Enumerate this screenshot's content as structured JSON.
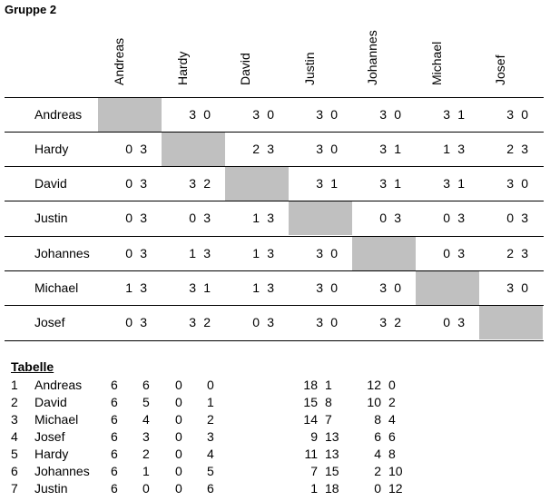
{
  "title": "Gruppe 2",
  "players": [
    "Andreas",
    "Hardy",
    "David",
    "Justin",
    "Johannes",
    "Michael",
    "Josef"
  ],
  "results": [
    [
      null,
      [
        "3",
        "0"
      ],
      [
        "3",
        "0"
      ],
      [
        "3",
        "0"
      ],
      [
        "3",
        "0"
      ],
      [
        "3",
        "1"
      ],
      [
        "3",
        "0"
      ]
    ],
    [
      [
        "0",
        "3"
      ],
      null,
      [
        "2",
        "3"
      ],
      [
        "3",
        "0"
      ],
      [
        "3",
        "1"
      ],
      [
        "1",
        "3"
      ],
      [
        "2",
        "3"
      ]
    ],
    [
      [
        "0",
        "3"
      ],
      [
        "3",
        "2"
      ],
      null,
      [
        "3",
        "1"
      ],
      [
        "3",
        "1"
      ],
      [
        "3",
        "1"
      ],
      [
        "3",
        "0"
      ]
    ],
    [
      [
        "0",
        "3"
      ],
      [
        "0",
        "3"
      ],
      [
        "1",
        "3"
      ],
      null,
      [
        "0",
        "3"
      ],
      [
        "0",
        "3"
      ],
      [
        "0",
        "3"
      ]
    ],
    [
      [
        "0",
        "3"
      ],
      [
        "1",
        "3"
      ],
      [
        "1",
        "3"
      ],
      [
        "3",
        "0"
      ],
      null,
      [
        "0",
        "3"
      ],
      [
        "2",
        "3"
      ]
    ],
    [
      [
        "1",
        "3"
      ],
      [
        "3",
        "1"
      ],
      [
        "1",
        "3"
      ],
      [
        "3",
        "0"
      ],
      [
        "3",
        "0"
      ],
      null,
      [
        "3",
        "0"
      ]
    ],
    [
      [
        "0",
        "3"
      ],
      [
        "3",
        "2"
      ],
      [
        "0",
        "3"
      ],
      [
        "3",
        "0"
      ],
      [
        "3",
        "2"
      ],
      [
        "0",
        "3"
      ],
      null
    ]
  ],
  "standings_title": "Tabelle",
  "standings": [
    {
      "rank": "1",
      "name": "Andreas",
      "played": "6",
      "won": "6",
      "drawn": "0",
      "lost": "0",
      "sets_for": "18",
      "sets_against": "1",
      "pts_for": "12",
      "pts_against": "0"
    },
    {
      "rank": "2",
      "name": "David",
      "played": "6",
      "won": "5",
      "drawn": "0",
      "lost": "1",
      "sets_for": "15",
      "sets_against": "8",
      "pts_for": "10",
      "pts_against": "2"
    },
    {
      "rank": "3",
      "name": "Michael",
      "played": "6",
      "won": "4",
      "drawn": "0",
      "lost": "2",
      "sets_for": "14",
      "sets_against": "7",
      "pts_for": "8",
      "pts_against": "4"
    },
    {
      "rank": "4",
      "name": "Josef",
      "played": "6",
      "won": "3",
      "drawn": "0",
      "lost": "3",
      "sets_for": "9",
      "sets_against": "13",
      "pts_for": "6",
      "pts_against": "6"
    },
    {
      "rank": "5",
      "name": "Hardy",
      "played": "6",
      "won": "2",
      "drawn": "0",
      "lost": "4",
      "sets_for": "11",
      "sets_against": "13",
      "pts_for": "4",
      "pts_against": "8"
    },
    {
      "rank": "6",
      "name": "Johannes",
      "played": "6",
      "won": "1",
      "drawn": "0",
      "lost": "5",
      "sets_for": "7",
      "sets_against": "15",
      "pts_for": "2",
      "pts_against": "10"
    },
    {
      "rank": "7",
      "name": "Justin",
      "played": "6",
      "won": "0",
      "drawn": "0",
      "lost": "6",
      "sets_for": "1",
      "sets_against": "18",
      "pts_for": "0",
      "pts_against": "12"
    }
  ],
  "colors": {
    "diagonal": "#c0c0c0",
    "lines": "#000000"
  }
}
